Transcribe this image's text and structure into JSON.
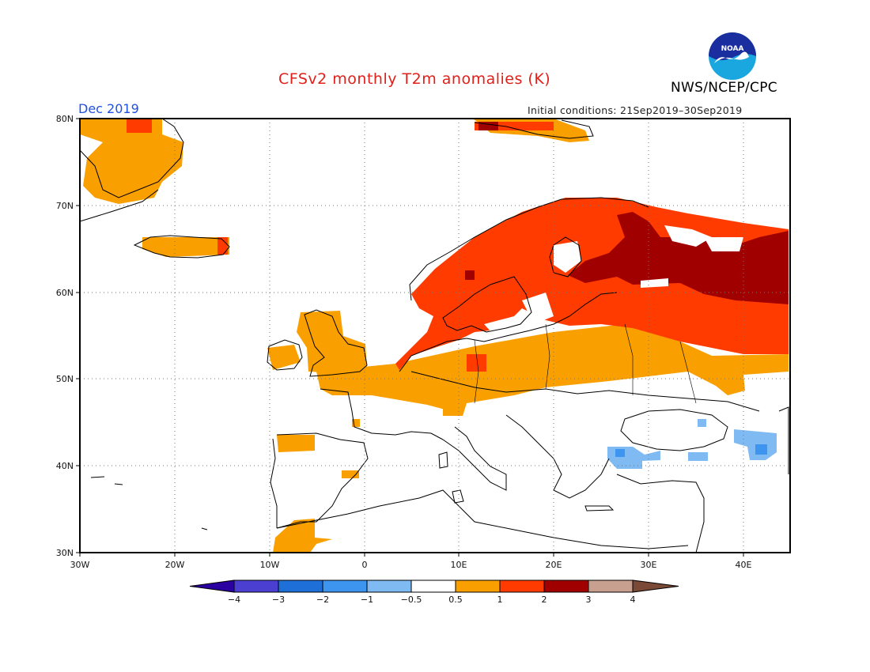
{
  "title": "CFSv2 monthly T2m anomalies (K)",
  "month_label": "Dec 2019",
  "initial_conditions": "Initial conditions: 21Sep2019–30Sep2019",
  "agency": "NWS/NCEP/CPC",
  "logo_text": "NOAA",
  "map": {
    "lon_range": [
      -30,
      45
    ],
    "lat_range": [
      30,
      80
    ],
    "lat_ticks": [
      "30N",
      "40N",
      "50N",
      "60N",
      "70N",
      "80N"
    ],
    "lon_ticks": [
      "30W",
      "20W",
      "10W",
      "0",
      "10E",
      "20E",
      "30E",
      "40E"
    ],
    "grid": "dotted"
  },
  "colorbar": {
    "labels": [
      "−4",
      "−3",
      "−2",
      "−1",
      "−0.5",
      "0.5",
      "1",
      "2",
      "3",
      "4"
    ],
    "colors": [
      "#2a00a0",
      "#4a3fd0",
      "#1e6fd8",
      "#3e95f0",
      "#7fbbf2",
      "#ffffff",
      "#f9a000",
      "#ff3b00",
      "#a00000",
      "#c7a08f",
      "#7a4a36"
    ]
  },
  "anomaly_regions": [
    {
      "level": "1",
      "color": "#ff3b00",
      "area": "Scandinavia and the Baltic"
    },
    {
      "level": "2",
      "color": "#a00000",
      "area": "northwest Russia"
    },
    {
      "level": "0.5",
      "color": "#f9a000",
      "area": "British Isles, central Europe, Ukraine"
    },
    {
      "level": "-0.5",
      "color": "#7fbbf2",
      "area": "Turkey and the Black Sea coast"
    }
  ]
}
